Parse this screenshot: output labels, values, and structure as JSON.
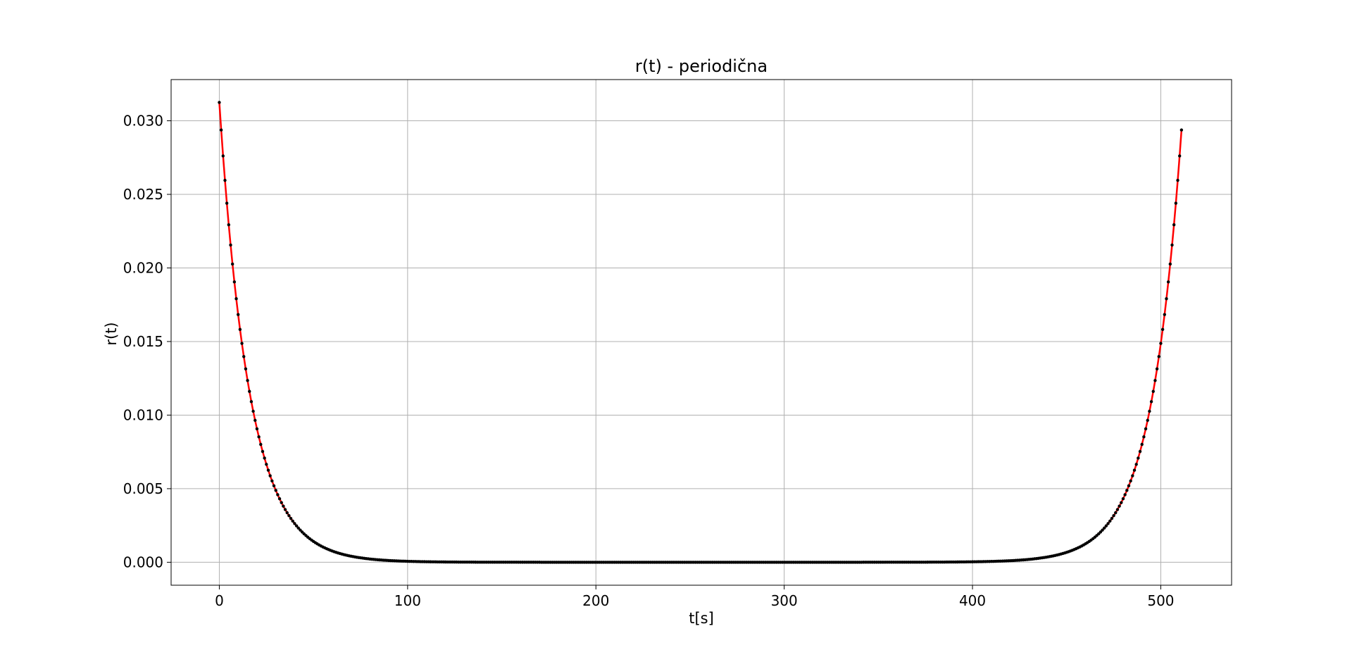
{
  "chart_data": {
    "type": "line",
    "title": "r(t) - periodična",
    "xlabel": "t[s]",
    "ylabel": "r(t)",
    "xlim": [
      -25.6,
      537.6
    ],
    "ylim": [
      -0.00156,
      0.0328
    ],
    "xticks": [
      0,
      100,
      200,
      300,
      400,
      500
    ],
    "xtick_labels": [
      "0",
      "100",
      "200",
      "300",
      "400",
      "500"
    ],
    "yticks": [
      0.0,
      0.005,
      0.01,
      0.015,
      0.02,
      0.025,
      0.03
    ],
    "ytick_labels": [
      "0.000",
      "0.005",
      "0.010",
      "0.015",
      "0.020",
      "0.025",
      "0.030"
    ],
    "grid": true,
    "line_color": "#ff0000",
    "marker_color": "#000000",
    "series": [
      {
        "description": "r(t) = 0.03125 * 0.94^t + 0.03125 * 0.94^(512 - t), sampled at t = 0..511",
        "t_start": 0,
        "t_end": 511,
        "step": 1,
        "amplitude": 0.03125,
        "decay_base": 0.94,
        "period": 512
      }
    ]
  }
}
